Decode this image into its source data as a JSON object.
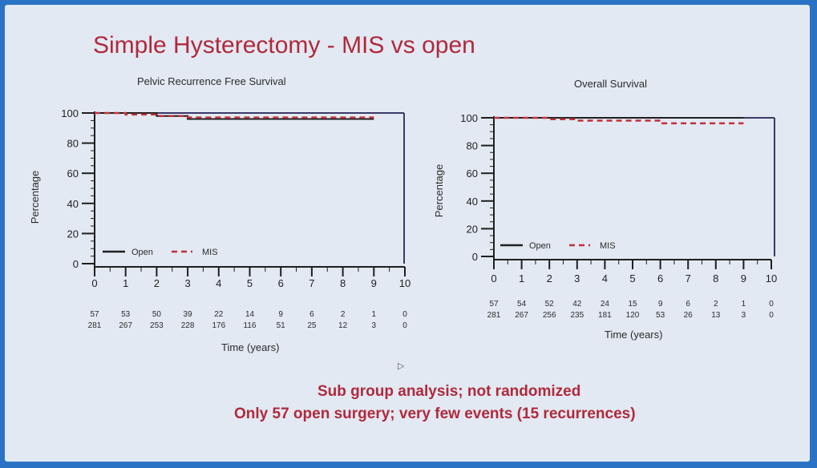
{
  "slide": {
    "title": "Simple Hysterectomy - MIS vs open",
    "footnote_line1": "Sub group analysis; not randomized",
    "footnote_line2": "Only 57 open surgery; very few events (15 recurrences)",
    "colors": {
      "title": "#b0293c",
      "open": "#1f1f1f",
      "mis": "#c0303a",
      "background": "#e2e9f2",
      "frame": "#2a73c4"
    }
  },
  "chart_data": [
    {
      "type": "line",
      "chart_kind": "kaplan-meier step",
      "title": "Pelvic Recurrence Free Survival",
      "xlabel": "Time (years)",
      "ylabel": "Percentage",
      "xlim": [
        0,
        10
      ],
      "ylim": [
        0,
        100
      ],
      "x_ticks": [
        "0",
        "1",
        "2",
        "3",
        "4",
        "5",
        "6",
        "7",
        "8",
        "9",
        "10"
      ],
      "y_ticks": [
        "0",
        "20",
        "40",
        "60",
        "80",
        "100"
      ],
      "series": [
        {
          "name": "Open",
          "style": "solid",
          "color": "#1f1f1f",
          "x": [
            0,
            1,
            2,
            3,
            4,
            5,
            6,
            7,
            8,
            9
          ],
          "y": [
            100,
            100,
            98,
            96,
            96,
            96,
            96,
            96,
            96,
            96
          ]
        },
        {
          "name": "MIS",
          "style": "dashed",
          "color": "#c0303a",
          "x": [
            0,
            1,
            2,
            3,
            4,
            5,
            6,
            7,
            8,
            9
          ],
          "y": [
            100,
            99,
            98,
            97,
            97,
            97,
            97,
            97,
            97,
            97
          ]
        }
      ],
      "risk_table": {
        "open": [
          "57",
          "53",
          "50",
          "39",
          "22",
          "14",
          "9",
          "6",
          "2",
          "1",
          "0"
        ],
        "mis": [
          "281",
          "267",
          "253",
          "228",
          "176",
          "116",
          "51",
          "25",
          "12",
          "3",
          "0"
        ]
      },
      "legend": {
        "placement": "bottom-left"
      }
    },
    {
      "type": "line",
      "chart_kind": "kaplan-meier step",
      "title": "Overall Survival",
      "xlabel": "Time (years)",
      "ylabel": "Percentage",
      "xlim": [
        0,
        10
      ],
      "ylim": [
        0,
        100
      ],
      "x_ticks": [
        "0",
        "1",
        "2",
        "3",
        "4",
        "5",
        "6",
        "7",
        "8",
        "9",
        "10"
      ],
      "y_ticks": [
        "0",
        "20",
        "40",
        "60",
        "80",
        "100"
      ],
      "series": [
        {
          "name": "Open",
          "style": "solid",
          "color": "#1f1f1f",
          "x": [
            0,
            1,
            2,
            3,
            4,
            5,
            6,
            7,
            8,
            9
          ],
          "y": [
            100,
            100,
            100,
            100,
            100,
            100,
            100,
            100,
            100,
            100
          ]
        },
        {
          "name": "MIS",
          "style": "dashed",
          "color": "#c0303a",
          "x": [
            0,
            1,
            2,
            3,
            4,
            5,
            6,
            7,
            8,
            9
          ],
          "y": [
            100,
            100,
            99,
            98,
            98,
            98,
            96,
            96,
            96,
            96
          ]
        }
      ],
      "risk_table": {
        "open": [
          "57",
          "54",
          "52",
          "42",
          "24",
          "15",
          "9",
          "6",
          "2",
          "1",
          "0"
        ],
        "mis": [
          "281",
          "267",
          "256",
          "235",
          "181",
          "120",
          "53",
          "26",
          "13",
          "3",
          "0"
        ]
      },
      "legend": {
        "placement": "bottom-left"
      }
    }
  ]
}
